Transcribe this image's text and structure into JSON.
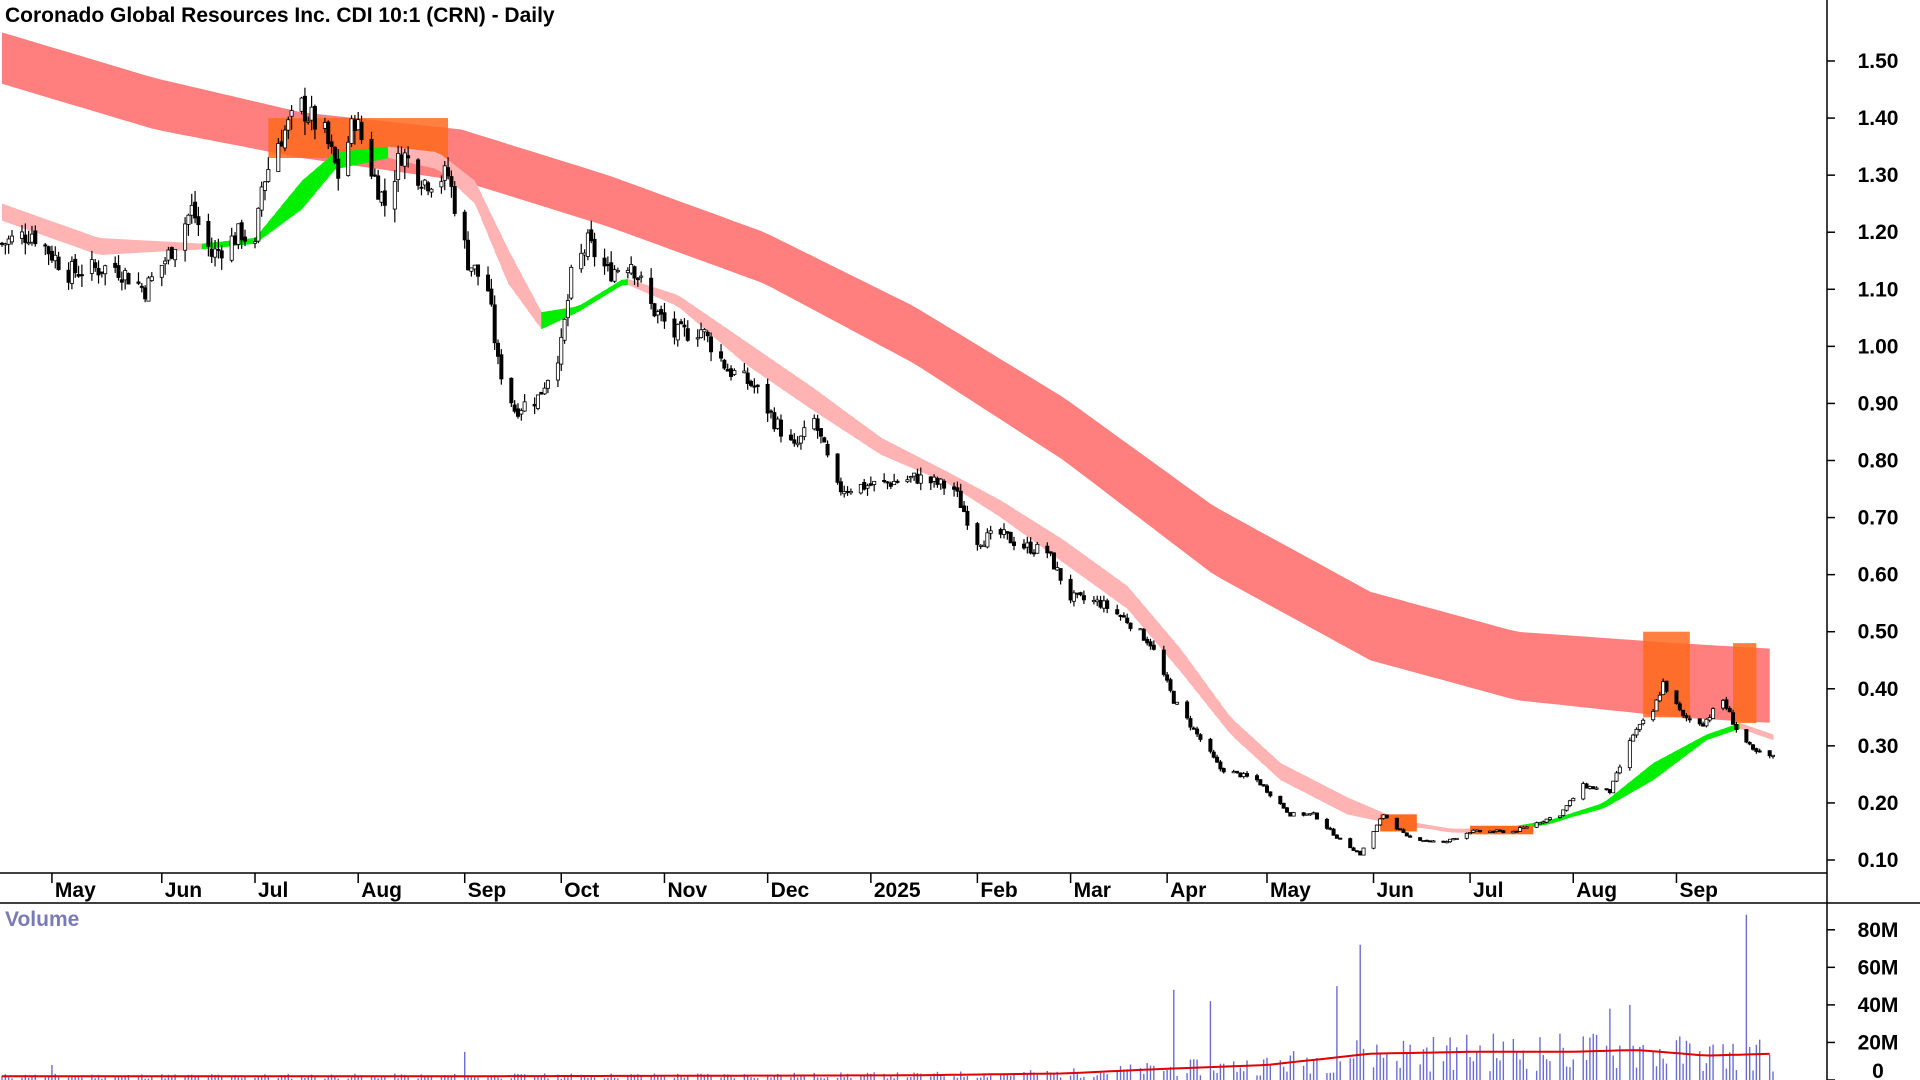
{
  "chart_data": {
    "type": "candlestick",
    "title": "Coronado Global Resources Inc. CDI 10:1 (CRN) - Daily",
    "y_ticks": [
      "1.50",
      "1.40",
      "1.30",
      "1.20",
      "1.10",
      "1.00",
      "0.90",
      "0.80",
      "0.70",
      "0.60",
      "0.50",
      "0.40",
      "0.30",
      "0.20",
      "0.10"
    ],
    "ylim": [
      0.05,
      1.6
    ],
    "x_ticks": [
      "May",
      "Jun",
      "Jul",
      "Aug",
      "Sep",
      "Oct",
      "Nov",
      "Dec",
      "2025",
      "Feb",
      "Mar",
      "Apr",
      "May",
      "Jun",
      "Jul",
      "Aug",
      "Sep"
    ],
    "x_tick_dates": [
      "2024-05-01",
      "2024-06-03",
      "2024-07-01",
      "2024-08-01",
      "2024-09-02",
      "2024-10-01",
      "2024-11-01",
      "2024-12-02",
      "2025-01-02",
      "2025-02-03",
      "2025-03-03",
      "2025-04-01",
      "2025-05-01",
      "2025-06-02",
      "2025-07-01",
      "2025-08-01",
      "2025-09-01"
    ],
    "date_range": [
      "2024-04-16",
      "2025-09-30"
    ],
    "price_series": {
      "name": "",
      "points": [
        [
          "2024-04-16",
          1.18
        ],
        [
          "2024-04-25",
          1.2
        ],
        [
          "2024-05-06",
          1.13
        ],
        [
          "2024-05-20",
          1.14
        ],
        [
          "2024-05-29",
          1.1
        ],
        [
          "2024-06-05",
          1.16
        ],
        [
          "2024-06-12",
          1.24
        ],
        [
          "2024-06-18",
          1.16
        ],
        [
          "2024-06-27",
          1.2
        ],
        [
          "2024-07-01",
          1.17
        ],
        [
          "2024-07-03",
          1.28
        ],
        [
          "2024-07-08",
          1.36
        ],
        [
          "2024-07-15",
          1.42
        ],
        [
          "2024-07-22",
          1.37
        ],
        [
          "2024-07-26",
          1.3
        ],
        [
          "2024-07-31",
          1.4
        ],
        [
          "2024-08-05",
          1.31
        ],
        [
          "2024-08-09",
          1.25
        ],
        [
          "2024-08-14",
          1.34
        ],
        [
          "2024-08-21",
          1.29
        ],
        [
          "2024-08-28",
          1.3
        ],
        [
          "2024-09-03",
          1.15
        ],
        [
          "2024-09-09",
          1.1
        ],
        [
          "2024-09-12",
          0.97
        ],
        [
          "2024-09-17",
          0.89
        ],
        [
          "2024-09-24",
          0.91
        ],
        [
          "2024-10-01",
          1.0
        ],
        [
          "2024-10-04",
          1.12
        ],
        [
          "2024-10-09",
          1.18
        ],
        [
          "2024-10-15",
          1.13
        ],
        [
          "2024-10-22",
          1.15
        ],
        [
          "2024-10-28",
          1.07
        ],
        [
          "2024-11-04",
          1.02
        ],
        [
          "2024-11-12",
          1.03
        ],
        [
          "2024-11-20",
          0.96
        ],
        [
          "2024-11-28",
          0.93
        ],
        [
          "2024-12-04",
          0.87
        ],
        [
          "2024-12-10",
          0.82
        ],
        [
          "2024-12-16",
          0.87
        ],
        [
          "2024-12-23",
          0.75
        ],
        [
          "2025-01-06",
          0.76
        ],
        [
          "2025-01-16",
          0.77
        ],
        [
          "2025-01-27",
          0.75
        ],
        [
          "2025-02-03",
          0.66
        ],
        [
          "2025-02-10",
          0.67
        ],
        [
          "2025-02-17",
          0.65
        ],
        [
          "2025-02-24",
          0.64
        ],
        [
          "2025-03-03",
          0.56
        ],
        [
          "2025-03-12",
          0.55
        ],
        [
          "2025-03-20",
          0.52
        ],
        [
          "2025-03-27",
          0.48
        ],
        [
          "2025-04-03",
          0.38
        ],
        [
          "2025-04-10",
          0.32
        ],
        [
          "2025-04-17",
          0.26
        ],
        [
          "2025-04-28",
          0.24
        ],
        [
          "2025-05-08",
          0.18
        ],
        [
          "2025-05-15",
          0.18
        ],
        [
          "2025-05-22",
          0.14
        ],
        [
          "2025-05-29",
          0.11
        ],
        [
          "2025-06-05",
          0.18
        ],
        [
          "2025-06-12",
          0.14
        ],
        [
          "2025-06-23",
          0.13
        ],
        [
          "2025-07-01",
          0.15
        ],
        [
          "2025-07-14",
          0.15
        ],
        [
          "2025-07-28",
          0.18
        ],
        [
          "2025-08-04",
          0.23
        ],
        [
          "2025-08-12",
          0.22
        ],
        [
          "2025-08-19",
          0.32
        ],
        [
          "2025-08-25",
          0.36
        ],
        [
          "2025-08-28",
          0.41
        ],
        [
          "2025-09-03",
          0.35
        ],
        [
          "2025-09-09",
          0.34
        ],
        [
          "2025-09-15",
          0.38
        ],
        [
          "2025-09-19",
          0.33
        ],
        [
          "2025-09-24",
          0.29
        ],
        [
          "2025-09-30",
          0.28
        ]
      ]
    },
    "short_band": {
      "points": [
        [
          "2024-04-16",
          1.25,
          1.22
        ],
        [
          "2024-05-15",
          1.19,
          1.16
        ],
        [
          "2024-06-15",
          1.18,
          1.17
        ],
        [
          "2024-07-01",
          1.19,
          1.18
        ],
        [
          "2024-07-15",
          1.29,
          1.24
        ],
        [
          "2024-07-25",
          1.34,
          1.31
        ],
        [
          "2024-08-10",
          1.35,
          1.33
        ],
        [
          "2024-08-25",
          1.34,
          1.31
        ],
        [
          "2024-09-05",
          1.29,
          1.25
        ],
        [
          "2024-09-15",
          1.17,
          1.11
        ],
        [
          "2024-09-25",
          1.06,
          1.03
        ],
        [
          "2024-10-06",
          1.07,
          1.06
        ],
        [
          "2024-10-20",
          1.12,
          1.11
        ],
        [
          "2024-11-05",
          1.09,
          1.07
        ],
        [
          "2024-11-25",
          1.01,
          0.97
        ],
        [
          "2024-12-15",
          0.93,
          0.89
        ],
        [
          "2025-01-05",
          0.84,
          0.81
        ],
        [
          "2025-01-25",
          0.78,
          0.76
        ],
        [
          "2025-02-10",
          0.73,
          0.7
        ],
        [
          "2025-03-01",
          0.66,
          0.62
        ],
        [
          "2025-03-20",
          0.58,
          0.54
        ],
        [
          "2025-04-05",
          0.47,
          0.43
        ],
        [
          "2025-04-20",
          0.35,
          0.32
        ],
        [
          "2025-05-05",
          0.27,
          0.24
        ],
        [
          "2025-05-25",
          0.21,
          0.18
        ],
        [
          "2025-06-10",
          0.17,
          0.16
        ],
        [
          "2025-06-25",
          0.155,
          0.15
        ],
        [
          "2025-07-10",
          0.155,
          0.15
        ],
        [
          "2025-07-25",
          0.17,
          0.165
        ],
        [
          "2025-08-10",
          0.2,
          0.19
        ],
        [
          "2025-08-25",
          0.27,
          0.24
        ],
        [
          "2025-09-10",
          0.32,
          0.31
        ],
        [
          "2025-09-20",
          0.34,
          0.33
        ],
        [
          "2025-09-30",
          0.32,
          0.31
        ]
      ]
    },
    "long_band": {
      "points": [
        [
          "2024-04-16",
          1.55,
          1.46
        ],
        [
          "2024-06-01",
          1.47,
          1.38
        ],
        [
          "2024-07-15",
          1.41,
          1.33
        ],
        [
          "2024-09-01",
          1.38,
          1.29
        ],
        [
          "2024-10-15",
          1.3,
          1.21
        ],
        [
          "2024-12-01",
          1.2,
          1.11
        ],
        [
          "2025-01-15",
          1.07,
          0.97
        ],
        [
          "2025-03-01",
          0.91,
          0.8
        ],
        [
          "2025-04-15",
          0.72,
          0.6
        ],
        [
          "2025-06-01",
          0.57,
          0.45
        ],
        [
          "2025-07-15",
          0.5,
          0.38
        ],
        [
          "2025-09-01",
          0.48,
          0.35
        ],
        [
          "2025-09-30",
          0.47,
          0.34
        ]
      ]
    },
    "volume": {
      "label": "Volume",
      "y_ticks": [
        "80M",
        "60M",
        "40M",
        "20M",
        "0"
      ],
      "ylim": [
        0,
        90
      ],
      "avg_line": [
        [
          "2024-04-16",
          2
        ],
        [
          "2024-09-01",
          2
        ],
        [
          "2025-01-15",
          2.5
        ],
        [
          "2025-03-01",
          3.5
        ],
        [
          "2025-04-01",
          6
        ],
        [
          "2025-05-01",
          8
        ],
        [
          "2025-06-01",
          14
        ],
        [
          "2025-07-01",
          15
        ],
        [
          "2025-08-01",
          15
        ],
        [
          "2025-08-20",
          16
        ],
        [
          "2025-09-10",
          13
        ],
        [
          "2025-09-30",
          14
        ]
      ],
      "spikes": [
        [
          "2024-05-01",
          8
        ],
        [
          "2024-09-02",
          15
        ],
        [
          "2025-04-03",
          48
        ],
        [
          "2025-04-14",
          42
        ],
        [
          "2025-05-22",
          50
        ],
        [
          "2025-05-29",
          72
        ],
        [
          "2025-08-12",
          38
        ],
        [
          "2025-08-18",
          40
        ],
        [
          "2025-09-22",
          88
        ]
      ]
    },
    "colors": {
      "long_band": "#ff7f7f",
      "short_band_falling": "#ffb3b3",
      "short_band_rising": "#00ee00",
      "crossover": "#ff6a1f",
      "volume_bar": "#6b6bd6",
      "volume_avg": "#e00000",
      "candle": "#000000"
    }
  }
}
